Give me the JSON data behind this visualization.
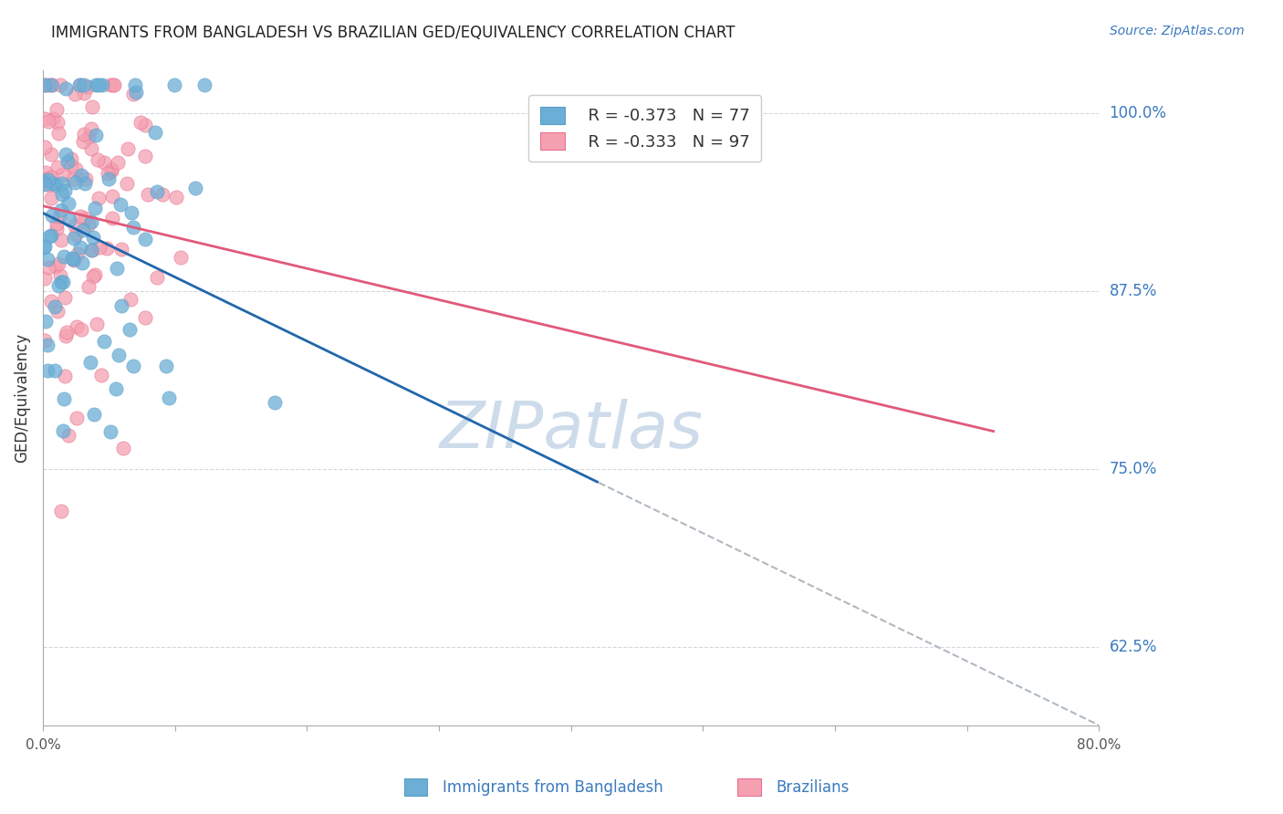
{
  "title": "IMMIGRANTS FROM BANGLADESH VS BRAZILIAN GED/EQUIVALENCY CORRELATION CHART",
  "source": "Source: ZipAtlas.com",
  "ylabel": "GED/Equivalency",
  "yaxis_labels": [
    "100.0%",
    "87.5%",
    "75.0%",
    "62.5%"
  ],
  "yaxis_values": [
    1.0,
    0.875,
    0.75,
    0.625
  ],
  "xmin": 0.0,
  "xmax": 0.8,
  "ymin": 0.57,
  "ymax": 1.03,
  "legend_r1": "R = -0.373",
  "legend_n1": "N = 77",
  "legend_r2": "R = -0.333",
  "legend_n2": "N = 97",
  "blue_color": "#6baed6",
  "pink_color": "#f4a0b0",
  "blue_line_color": "#2166ac",
  "pink_line_color": "#e05a7a",
  "blue_marker_edge": "#5a9ec9",
  "pink_marker_edge": "#e87090",
  "watermark": "ZIPatlas",
  "watermark_color": "#c8d8e8",
  "grid_color": "#d0d8e0",
  "axis_label_color": "#3a7abf",
  "title_color": "#222222",
  "bottom_legend_blue": "Immigrants from Bangladesh",
  "bottom_legend_pink": "Brazilians"
}
